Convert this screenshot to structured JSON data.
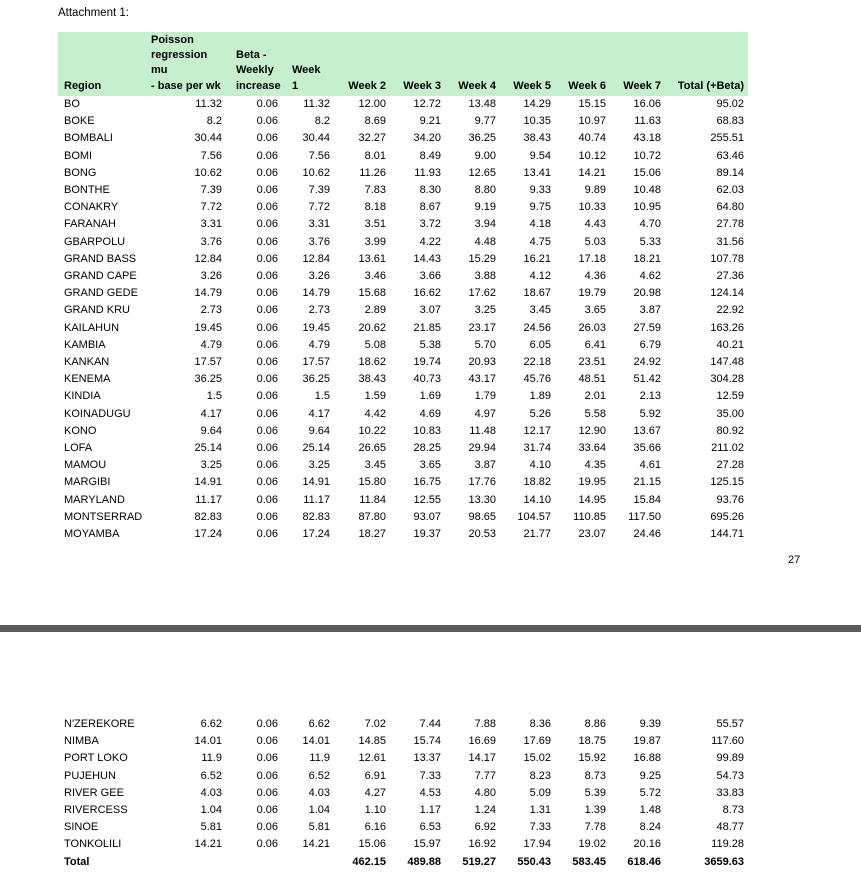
{
  "attachment_label": "Attachment 1:",
  "page_number": "27",
  "header_bg": "#c6efce",
  "columns": [
    "Region",
    "Poisson\nregression\nmu\n- base per wk",
    "Beta -\nWeekly\nincrease",
    "Week\n1",
    "Week 2",
    "Week 3",
    "Week 4",
    "Week 5",
    "Week 6",
    "Week 7",
    "Total (+Beta)"
  ],
  "page1_rows": [
    [
      "BO",
      "11.32",
      "0.06",
      "11.32",
      "12.00",
      "12.72",
      "13.48",
      "14.29",
      "15.15",
      "16.06",
      "95.02"
    ],
    [
      "BOKE",
      "8.2",
      "0.06",
      "8.2",
      "8.69",
      "9.21",
      "9.77",
      "10.35",
      "10.97",
      "11.63",
      "68.83"
    ],
    [
      "BOMBALI",
      "30.44",
      "0.06",
      "30.44",
      "32.27",
      "34.20",
      "36.25",
      "38.43",
      "40.74",
      "43.18",
      "255.51"
    ],
    [
      "BOMI",
      "7.56",
      "0.06",
      "7.56",
      "8.01",
      "8.49",
      "9.00",
      "9.54",
      "10.12",
      "10.72",
      "63.46"
    ],
    [
      "BONG",
      "10.62",
      "0.06",
      "10.62",
      "11.26",
      "11.93",
      "12.65",
      "13.41",
      "14.21",
      "15.06",
      "89.14"
    ],
    [
      "BONTHE",
      "7.39",
      "0.06",
      "7.39",
      "7.83",
      "8.30",
      "8.80",
      "9.33",
      "9.89",
      "10.48",
      "62.03"
    ],
    [
      "CONAKRY",
      "7.72",
      "0.06",
      "7.72",
      "8.18",
      "8.67",
      "9.19",
      "9.75",
      "10.33",
      "10.95",
      "64.80"
    ],
    [
      "FARANAH",
      "3.31",
      "0.06",
      "3.31",
      "3.51",
      "3.72",
      "3.94",
      "4.18",
      "4.43",
      "4.70",
      "27.78"
    ],
    [
      "GBARPOLU",
      "3.76",
      "0.06",
      "3.76",
      "3.99",
      "4.22",
      "4.48",
      "4.75",
      "5.03",
      "5.33",
      "31.56"
    ],
    [
      "GRAND BASS",
      "12.84",
      "0.06",
      "12.84",
      "13.61",
      "14.43",
      "15.29",
      "16.21",
      "17.18",
      "18.21",
      "107.78"
    ],
    [
      "GRAND CAPE",
      "3.26",
      "0.06",
      "3.26",
      "3.46",
      "3.66",
      "3.88",
      "4.12",
      "4.36",
      "4.62",
      "27.36"
    ],
    [
      "GRAND GEDE",
      "14.79",
      "0.06",
      "14.79",
      "15.68",
      "16.62",
      "17.62",
      "18.67",
      "19.79",
      "20.98",
      "124.14"
    ],
    [
      "GRAND KRU",
      "2.73",
      "0.06",
      "2.73",
      "2.89",
      "3.07",
      "3.25",
      "3.45",
      "3.65",
      "3.87",
      "22.92"
    ],
    [
      "KAILAHUN",
      "19.45",
      "0.06",
      "19.45",
      "20.62",
      "21.85",
      "23.17",
      "24.56",
      "26.03",
      "27.59",
      "163.26"
    ],
    [
      "KAMBIA",
      "4.79",
      "0.06",
      "4.79",
      "5.08",
      "5.38",
      "5.70",
      "6.05",
      "6.41",
      "6.79",
      "40.21"
    ],
    [
      "KANKAN",
      "17.57",
      "0.06",
      "17.57",
      "18.62",
      "19.74",
      "20.93",
      "22.18",
      "23.51",
      "24.92",
      "147.48"
    ],
    [
      "KENEMA",
      "36.25",
      "0.06",
      "36.25",
      "38.43",
      "40.73",
      "43.17",
      "45.76",
      "48.51",
      "51.42",
      "304.28"
    ],
    [
      "KINDIA",
      "1.5",
      "0.06",
      "1.5",
      "1.59",
      "1.69",
      "1.79",
      "1.89",
      "2.01",
      "2.13",
      "12.59"
    ],
    [
      "KOINADUGU",
      "4.17",
      "0.06",
      "4.17",
      "4.42",
      "4.69",
      "4.97",
      "5.26",
      "5.58",
      "5.92",
      "35.00"
    ],
    [
      "KONO",
      "9.64",
      "0.06",
      "9.64",
      "10.22",
      "10.83",
      "11.48",
      "12.17",
      "12.90",
      "13.67",
      "80.92"
    ],
    [
      "LOFA",
      "25.14",
      "0.06",
      "25.14",
      "26.65",
      "28.25",
      "29.94",
      "31.74",
      "33.64",
      "35.66",
      "211.02"
    ],
    [
      "MAMOU",
      "3.25",
      "0.06",
      "3.25",
      "3.45",
      "3.65",
      "3.87",
      "4.10",
      "4.35",
      "4.61",
      "27.28"
    ],
    [
      "MARGIBI",
      "14.91",
      "0.06",
      "14.91",
      "15.80",
      "16.75",
      "17.76",
      "18.82",
      "19.95",
      "21.15",
      "125.15"
    ],
    [
      "MARYLAND",
      "11.17",
      "0.06",
      "11.17",
      "11.84",
      "12.55",
      "13.30",
      "14.10",
      "14.95",
      "15.84",
      "93.76"
    ],
    [
      "MONTSERRAD",
      "82.83",
      "0.06",
      "82.83",
      "87.80",
      "93.07",
      "98.65",
      "104.57",
      "110.85",
      "117.50",
      "695.26"
    ],
    [
      "MOYAMBA",
      "17.24",
      "0.06",
      "17.24",
      "18.27",
      "19.37",
      "20.53",
      "21.77",
      "23.07",
      "24.46",
      "144.71"
    ]
  ],
  "page2_rows": [
    [
      "N'ZEREKORE",
      "6.62",
      "0.06",
      "6.62",
      "7.02",
      "7.44",
      "7.88",
      "8.36",
      "8.86",
      "9.39",
      "55.57"
    ],
    [
      "NIMBA",
      "14.01",
      "0.06",
      "14.01",
      "14.85",
      "15.74",
      "16.69",
      "17.69",
      "18.75",
      "19.87",
      "117.60"
    ],
    [
      "PORT LOKO",
      "11.9",
      "0.06",
      "11.9",
      "12.61",
      "13.37",
      "14.17",
      "15.02",
      "15.92",
      "16.88",
      "99.89"
    ],
    [
      "PUJEHUN",
      "6.52",
      "0.06",
      "6.52",
      "6.91",
      "7.33",
      "7.77",
      "8.23",
      "8.73",
      "9.25",
      "54.73"
    ],
    [
      "RIVER GEE",
      "4.03",
      "0.06",
      "4.03",
      "4.27",
      "4.53",
      "4.80",
      "5.09",
      "5.39",
      "5.72",
      "33.83"
    ],
    [
      "RIVERCESS",
      "1.04",
      "0.06",
      "1.04",
      "1.10",
      "1.17",
      "1.24",
      "1.31",
      "1.39",
      "1.48",
      "8.73"
    ],
    [
      "SINOE",
      "5.81",
      "0.06",
      "5.81",
      "6.16",
      "6.53",
      "6.92",
      "7.33",
      "7.78",
      "8.24",
      "48.77"
    ],
    [
      "TONKOLILI",
      "14.21",
      "0.06",
      "14.21",
      "15.06",
      "15.97",
      "16.92",
      "17.94",
      "19.02",
      "20.16",
      "119.28"
    ]
  ],
  "total_row": [
    "Total",
    "",
    "",
    "",
    "462.15",
    "489.88",
    "519.27",
    "550.43",
    "583.45",
    "618.46",
    "3659.63"
  ]
}
